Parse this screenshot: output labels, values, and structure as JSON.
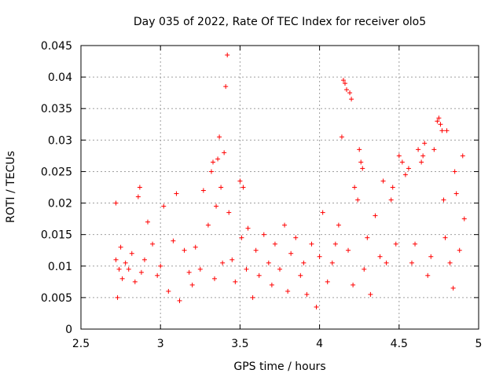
{
  "chart_data": {
    "type": "scatter",
    "title": "Day 035 of 2022, Rate Of TEC Index for receiver olo5",
    "xlabel": "GPS time / hours",
    "ylabel": "ROTI / TECUs",
    "xlim": [
      2.5,
      5
    ],
    "ylim": [
      0,
      0.045
    ],
    "x_ticks": [
      "2.5",
      "3",
      "3.5",
      "4",
      "4.5",
      "5"
    ],
    "y_ticks": [
      "0",
      "0.005",
      "0.01",
      "0.015",
      "0.02",
      "0.025",
      "0.03",
      "0.035",
      "0.04",
      "0.045"
    ],
    "grid": true,
    "marker": "+",
    "colors": {
      "points": "#ff0000",
      "grid": "#a0a0a0",
      "axes": "#000000"
    },
    "series": [
      {
        "x": [
          2.72,
          2.72,
          2.73,
          2.74,
          2.75,
          2.76,
          2.78,
          2.8,
          2.82,
          2.84,
          2.86,
          2.87,
          2.88,
          2.9,
          2.92,
          2.95,
          2.98,
          3.0,
          3.02,
          3.05,
          3.08,
          3.1,
          3.12,
          3.15,
          3.18,
          3.2,
          3.22,
          3.25,
          3.27,
          3.3,
          3.32,
          3.33,
          3.34,
          3.35,
          3.36,
          3.37,
          3.38,
          3.39,
          3.4,
          3.41,
          3.42,
          3.43,
          3.45,
          3.47,
          3.5,
          3.51,
          3.52,
          3.54,
          3.55,
          3.58,
          3.6,
          3.62,
          3.65,
          3.68,
          3.7,
          3.72,
          3.75,
          3.78,
          3.8,
          3.82,
          3.85,
          3.88,
          3.9,
          3.92,
          3.95,
          3.98,
          4.0,
          4.02,
          4.05,
          4.08,
          4.1,
          4.12,
          4.14,
          4.15,
          4.16,
          4.17,
          4.18,
          4.19,
          4.2,
          4.21,
          4.22,
          4.24,
          4.25,
          4.26,
          4.27,
          4.28,
          4.3,
          4.32,
          4.35,
          4.38,
          4.4,
          4.42,
          4.45,
          4.46,
          4.48,
          4.5,
          4.52,
          4.54,
          4.56,
          4.58,
          4.6,
          4.62,
          4.64,
          4.65,
          4.66,
          4.68,
          4.7,
          4.72,
          4.74,
          4.75,
          4.76,
          4.77,
          4.78,
          4.79,
          4.8,
          4.82,
          4.84,
          4.85,
          4.86,
          4.88,
          4.9,
          4.91
        ],
        "y": [
          0.02,
          0.011,
          0.005,
          0.0095,
          0.013,
          0.008,
          0.0105,
          0.0095,
          0.012,
          0.0075,
          0.021,
          0.0225,
          0.009,
          0.011,
          0.017,
          0.0135,
          0.0085,
          0.01,
          0.0195,
          0.006,
          0.014,
          0.0215,
          0.0045,
          0.0125,
          0.009,
          0.007,
          0.013,
          0.0095,
          0.022,
          0.0165,
          0.025,
          0.0265,
          0.008,
          0.0195,
          0.027,
          0.0305,
          0.0225,
          0.0105,
          0.028,
          0.0385,
          0.0435,
          0.0185,
          0.011,
          0.0075,
          0.0235,
          0.0145,
          0.0225,
          0.0095,
          0.016,
          0.005,
          0.0125,
          0.0085,
          0.015,
          0.0105,
          0.007,
          0.0135,
          0.0095,
          0.0165,
          0.006,
          0.012,
          0.0145,
          0.0085,
          0.0105,
          0.0055,
          0.0135,
          0.0035,
          0.0115,
          0.0185,
          0.0075,
          0.0105,
          0.0135,
          0.0165,
          0.0305,
          0.0395,
          0.039,
          0.038,
          0.0125,
          0.0375,
          0.0365,
          0.007,
          0.0225,
          0.0205,
          0.0285,
          0.0265,
          0.0255,
          0.0095,
          0.0145,
          0.0055,
          0.018,
          0.0115,
          0.0235,
          0.0105,
          0.0205,
          0.0225,
          0.0135,
          0.0275,
          0.0265,
          0.0245,
          0.0255,
          0.0105,
          0.0135,
          0.0285,
          0.0265,
          0.0275,
          0.0295,
          0.0085,
          0.0115,
          0.0285,
          0.033,
          0.0335,
          0.0325,
          0.0315,
          0.0205,
          0.0145,
          0.0315,
          0.0105,
          0.0065,
          0.025,
          0.0215,
          0.0125,
          0.0275,
          0.0175
        ]
      }
    ]
  }
}
